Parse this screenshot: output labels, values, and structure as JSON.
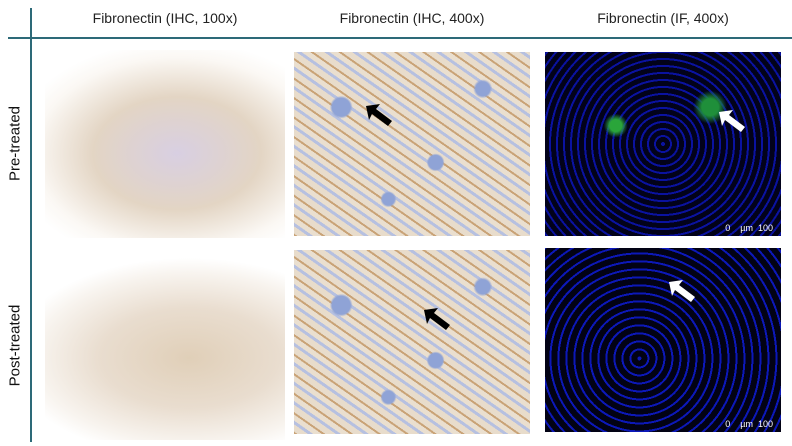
{
  "columns": [
    "Fibronectin (IHC, 100x)",
    "Fibronectin (IHC, 400x)",
    "Fibronectin (IF, 400x)"
  ],
  "rows": [
    "Pre-treated",
    "Post-treated"
  ],
  "scale_bar": {
    "start": "0",
    "unit": "µm",
    "end": "100"
  },
  "colors": {
    "divider": "#2d6a78",
    "ihc_arrow": "#000000",
    "if_arrow": "#ffffff"
  }
}
